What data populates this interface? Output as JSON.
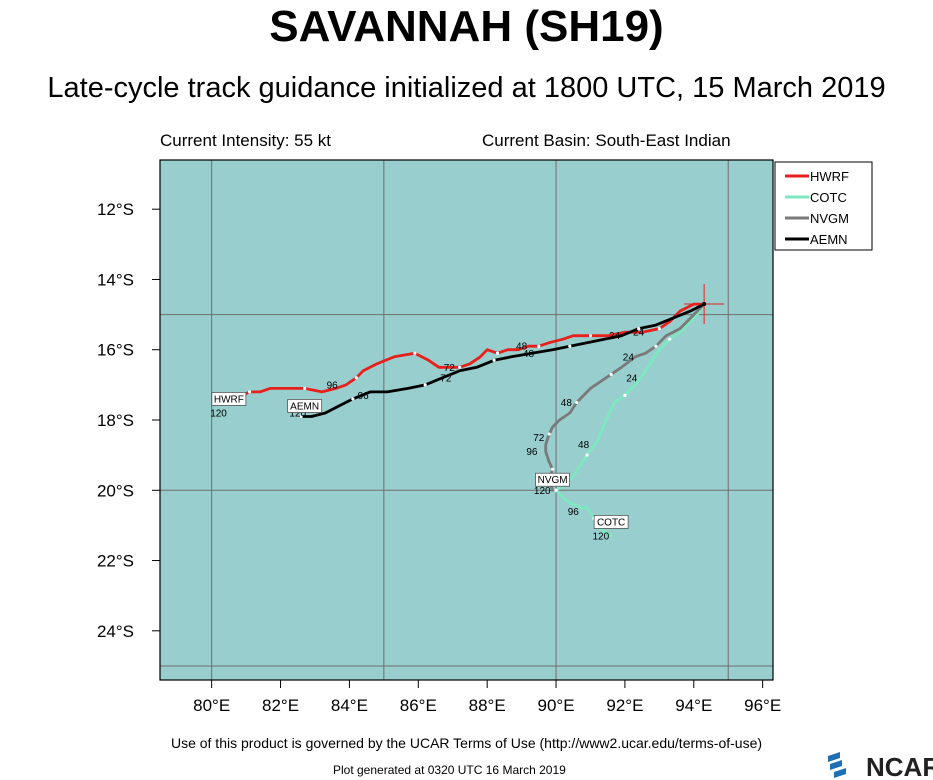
{
  "header": {
    "title": "SAVANNAH (SH19)",
    "subtitle": "Late-cycle track guidance initialized at 1800 UTC, 15 March 2019",
    "intensity": "Current Intensity: 55 kt",
    "basin": "Current Basin: South-East Indian"
  },
  "footer": {
    "terms": "Use of this product is governed by the UCAR Terms of Use (http://www2.ucar.edu/terms-of-use)",
    "generated": "Plot generated at 0320 UTC   16 March 2019",
    "logo_text": "NCAR"
  },
  "colors": {
    "ocean": "#98cece",
    "HWRF": "#e8201c",
    "COTC": "#7ee8c0",
    "NVGM": "#7a7a7a",
    "AEMN": "#000000",
    "grid": "#6e6e6e",
    "storm_marker": "#e8201c"
  },
  "chart_data": {
    "type": "line",
    "xlabel": "",
    "ylabel": "",
    "xlim": [
      78.5,
      96.3
    ],
    "ylim": [
      -25.4,
      -10.6
    ],
    "x_ticks": [
      80,
      82,
      84,
      86,
      88,
      90,
      92,
      94,
      96
    ],
    "x_tick_labels": [
      "80°E",
      "82°E",
      "84°E",
      "86°E",
      "88°E",
      "90°E",
      "92°E",
      "94°E",
      "96°E"
    ],
    "y_ticks": [
      -12,
      -14,
      -16,
      -18,
      -20,
      -22,
      -24
    ],
    "y_tick_labels": [
      "12°S",
      "14°S",
      "16°S",
      "18°S",
      "20°S",
      "22°S",
      "24°S"
    ],
    "grid_lon": [
      80,
      85,
      90,
      95
    ],
    "grid_lat": [
      -15,
      -20,
      -25
    ],
    "legend_position": "outside right, top",
    "storm_position": {
      "lon": 94.3,
      "lat": -14.7
    },
    "series": [
      {
        "name": "HWRF",
        "points": [
          [
            94.3,
            -14.7
          ],
          [
            94.0,
            -14.7
          ],
          [
            93.6,
            -14.9
          ],
          [
            93.3,
            -15.2
          ],
          [
            93.0,
            -15.4
          ],
          [
            92.5,
            -15.5
          ],
          [
            92.0,
            -15.5
          ],
          [
            91.5,
            -15.6
          ],
          [
            91.0,
            -15.6
          ],
          [
            90.5,
            -15.6
          ],
          [
            90.2,
            -15.7
          ],
          [
            89.8,
            -15.8
          ],
          [
            89.5,
            -15.9
          ],
          [
            89.2,
            -15.9
          ],
          [
            88.9,
            -16.0
          ],
          [
            88.6,
            -16.0
          ],
          [
            88.3,
            -16.1
          ],
          [
            88.0,
            -16.0
          ],
          [
            87.8,
            -16.2
          ],
          [
            87.5,
            -16.4
          ],
          [
            87.2,
            -16.5
          ],
          [
            86.9,
            -16.5
          ],
          [
            86.6,
            -16.5
          ],
          [
            86.3,
            -16.3
          ],
          [
            85.9,
            -16.1
          ],
          [
            85.3,
            -16.2
          ],
          [
            84.8,
            -16.4
          ],
          [
            84.4,
            -16.6
          ],
          [
            84.2,
            -16.8
          ],
          [
            83.9,
            -17.0
          ],
          [
            83.6,
            -17.1
          ],
          [
            83.2,
            -17.2
          ],
          [
            82.7,
            -17.1
          ],
          [
            82.2,
            -17.1
          ],
          [
            81.7,
            -17.1
          ],
          [
            81.4,
            -17.2
          ],
          [
            81.1,
            -17.2
          ],
          [
            80.7,
            -17.4
          ],
          [
            80.5,
            -17.5
          ]
        ],
        "tau_labels": [
          {
            "text": "24",
            "lon": 92.4,
            "lat": -15.6
          },
          {
            "text": "48",
            "lon": 89.0,
            "lat": -16.0
          },
          {
            "text": "72",
            "lon": 86.9,
            "lat": -16.6
          },
          {
            "text": "96",
            "lon": 83.5,
            "lat": -17.1
          },
          {
            "text": "120",
            "lon": 80.2,
            "lat": -17.9
          }
        ]
      },
      {
        "name": "COTC",
        "points": [
          [
            94.3,
            -14.7
          ],
          [
            94.1,
            -15.0
          ],
          [
            93.8,
            -15.3
          ],
          [
            93.6,
            -15.5
          ],
          [
            93.3,
            -15.7
          ],
          [
            93.0,
            -16.0
          ],
          [
            92.6,
            -16.6
          ],
          [
            92.3,
            -17.0
          ],
          [
            92.0,
            -17.3
          ],
          [
            91.7,
            -17.5
          ],
          [
            91.4,
            -18.1
          ],
          [
            91.2,
            -18.6
          ],
          [
            90.9,
            -19.0
          ],
          [
            90.7,
            -19.3
          ],
          [
            90.5,
            -19.6
          ],
          [
            90.3,
            -19.8
          ],
          [
            90.0,
            -20.0
          ],
          [
            90.3,
            -20.3
          ],
          [
            90.7,
            -20.5
          ],
          [
            90.9,
            -20.5
          ],
          [
            91.1,
            -20.8
          ],
          [
            91.3,
            -21.1
          ],
          [
            91.6,
            -21.3
          ]
        ],
        "tau_labels": [
          {
            "text": "24",
            "lon": 92.2,
            "lat": -16.9
          },
          {
            "text": "48",
            "lon": 90.8,
            "lat": -18.8
          },
          {
            "text": "72",
            "lon": 90.2,
            "lat": -19.8
          },
          {
            "text": "96",
            "lon": 90.5,
            "lat": -20.7
          },
          {
            "text": "120",
            "lon": 91.3,
            "lat": -21.4
          }
        ]
      },
      {
        "name": "NVGM",
        "points": [
          [
            94.3,
            -14.7
          ],
          [
            94.0,
            -15.0
          ],
          [
            93.6,
            -15.4
          ],
          [
            93.2,
            -15.6
          ],
          [
            92.9,
            -15.9
          ],
          [
            92.6,
            -16.1
          ],
          [
            92.3,
            -16.2
          ],
          [
            91.9,
            -16.5
          ],
          [
            91.6,
            -16.7
          ],
          [
            91.3,
            -16.9
          ],
          [
            91.0,
            -17.1
          ],
          [
            90.8,
            -17.3
          ],
          [
            90.6,
            -17.5
          ],
          [
            90.4,
            -17.8
          ],
          [
            90.1,
            -18.0
          ],
          [
            89.9,
            -18.2
          ],
          [
            89.8,
            -18.4
          ],
          [
            89.7,
            -18.7
          ],
          [
            89.7,
            -18.9
          ],
          [
            89.8,
            -19.2
          ],
          [
            89.9,
            -19.4
          ],
          [
            89.8,
            -19.7
          ],
          [
            89.9,
            -20.0
          ]
        ],
        "tau_labels": [
          {
            "text": "24",
            "lon": 92.1,
            "lat": -16.3
          },
          {
            "text": "48",
            "lon": 90.3,
            "lat": -17.6
          },
          {
            "text": "72",
            "lon": 89.5,
            "lat": -18.6
          },
          {
            "text": "96",
            "lon": 89.3,
            "lat": -19.0
          },
          {
            "text": "120",
            "lon": 89.6,
            "lat": -20.1
          }
        ]
      },
      {
        "name": "AEMN",
        "points": [
          [
            94.3,
            -14.7
          ],
          [
            93.9,
            -14.9
          ],
          [
            93.4,
            -15.1
          ],
          [
            92.9,
            -15.3
          ],
          [
            92.4,
            -15.4
          ],
          [
            91.9,
            -15.6
          ],
          [
            91.4,
            -15.7
          ],
          [
            90.9,
            -15.8
          ],
          [
            90.4,
            -15.9
          ],
          [
            89.9,
            -16.0
          ],
          [
            89.3,
            -16.1
          ],
          [
            88.7,
            -16.2
          ],
          [
            88.2,
            -16.3
          ],
          [
            87.7,
            -16.5
          ],
          [
            87.2,
            -16.6
          ],
          [
            86.7,
            -16.8
          ],
          [
            86.2,
            -17.0
          ],
          [
            85.7,
            -17.1
          ],
          [
            85.1,
            -17.2
          ],
          [
            84.6,
            -17.2
          ],
          [
            84.1,
            -17.4
          ],
          [
            83.7,
            -17.6
          ],
          [
            83.3,
            -17.8
          ],
          [
            82.9,
            -17.9
          ],
          [
            82.6,
            -17.9
          ]
        ],
        "tau_labels": [
          {
            "text": "24",
            "lon": 91.7,
            "lat": -15.7
          },
          {
            "text": "48",
            "lon": 89.2,
            "lat": -16.2
          },
          {
            "text": "72",
            "lon": 86.8,
            "lat": -16.9
          },
          {
            "text": "96",
            "lon": 84.4,
            "lat": -17.4
          },
          {
            "text": "120",
            "lon": 82.5,
            "lat": -17.9
          }
        ]
      }
    ],
    "end_labels": [
      {
        "text": "HWRF",
        "lon": 80.5,
        "lat": -17.5
      },
      {
        "text": "AEMN",
        "lon": 82.7,
        "lat": -17.7
      },
      {
        "text": "NVGM",
        "lon": 89.9,
        "lat": -19.8
      },
      {
        "text": "COTC",
        "lon": 91.6,
        "lat": -21.0
      }
    ]
  }
}
